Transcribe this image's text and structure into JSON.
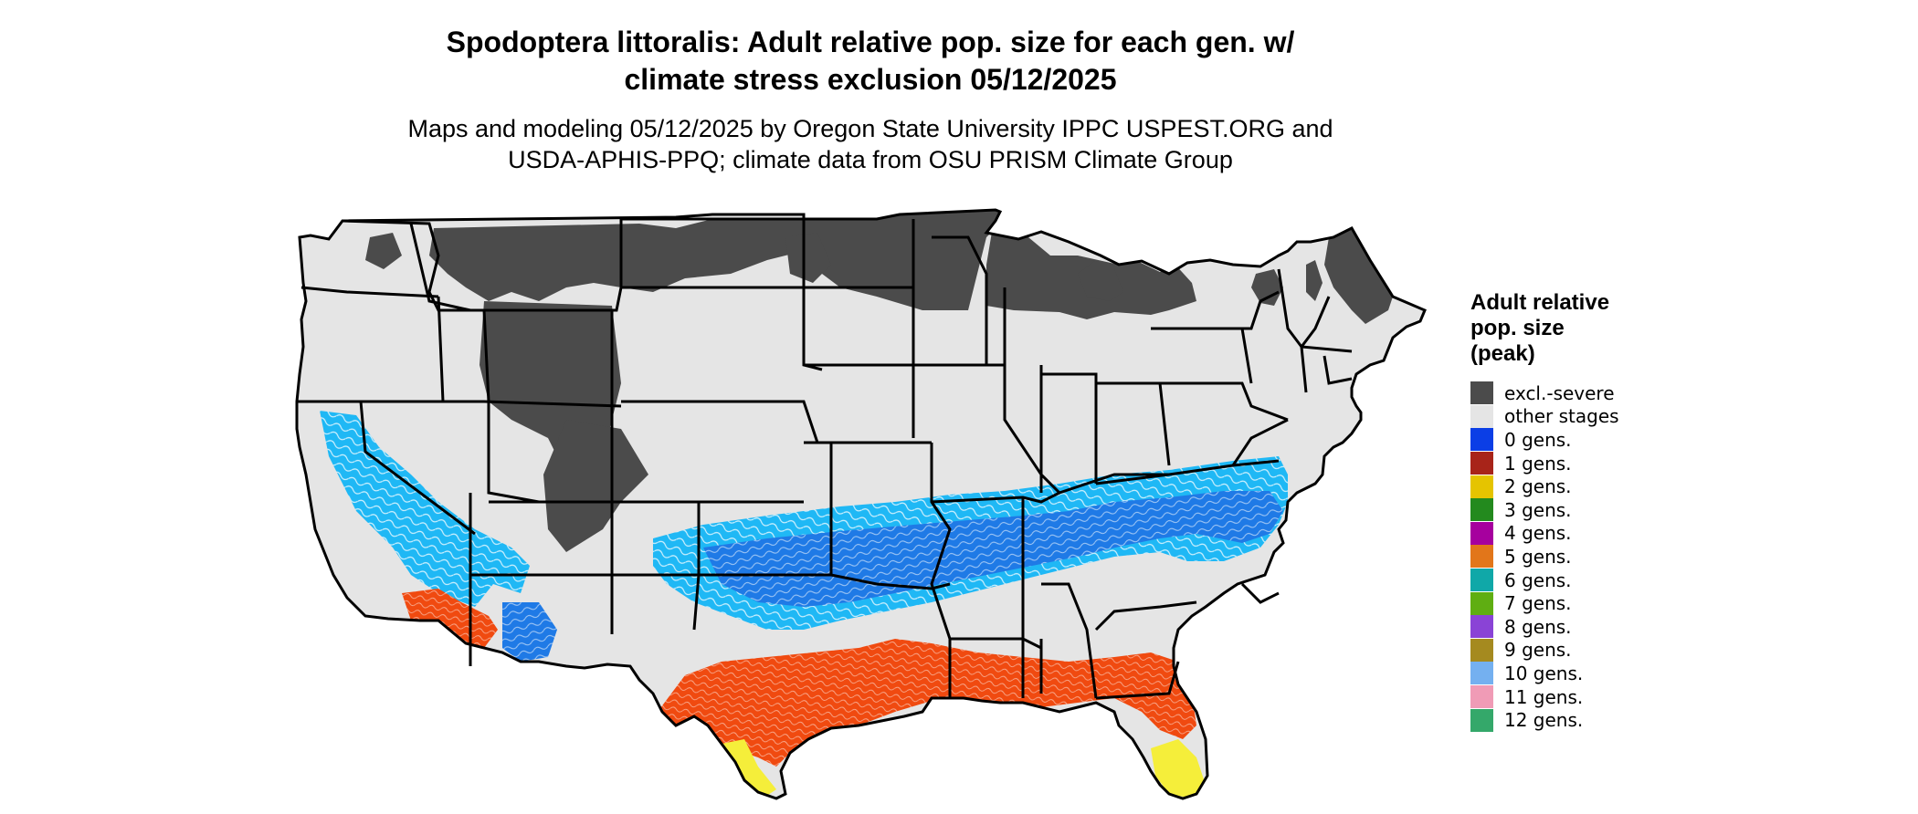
{
  "title": {
    "line1": "Spodoptera littoralis: Adult relative pop. size for each gen. w/",
    "line2": "climate stress exclusion 05/12/2025"
  },
  "subtitle": {
    "line1": "Maps and modeling 05/12/2025 by Oregon State University IPPC USPEST.ORG and",
    "line2": "USDA-APHIS-PPQ; climate data from OSU PRISM Climate Group"
  },
  "legend": {
    "title_lines": [
      "Adult relative",
      "pop. size",
      "(peak)"
    ],
    "items": [
      {
        "label": "excl.-severe",
        "color": "#4b4b4b"
      },
      {
        "label": "other stages",
        "color": "#e5e5e5"
      },
      {
        "label": "0 gens.",
        "color": "#0b3ee6"
      },
      {
        "label": "1 gens.",
        "color": "#a82419"
      },
      {
        "label": "2 gens.",
        "color": "#e5c400"
      },
      {
        "label": "3 gens.",
        "color": "#238a1e"
      },
      {
        "label": "4 gens.",
        "color": "#a6009e"
      },
      {
        "label": "5 gens.",
        "color": "#e2761a"
      },
      {
        "label": "6 gens.",
        "color": "#10a8a8"
      },
      {
        "label": "7 gens.",
        "color": "#5fae12"
      },
      {
        "label": "8 gens.",
        "color": "#8a43d6"
      },
      {
        "label": "9 gens.",
        "color": "#a58a1f"
      },
      {
        "label": "10 gens.",
        "color": "#74b0f0"
      },
      {
        "label": "11 gens.",
        "color": "#f09bb6"
      },
      {
        "label": "12 gens.",
        "color": "#34a86a"
      }
    ]
  },
  "map_colors": {
    "land": "#e5e5e5",
    "excluded": "#4b4b4b",
    "light_blue_band": "#1fb8f5",
    "mid_blue_band": "#1f7ae6",
    "orange_red_band": "#f04a10",
    "yellow_band": "#f5ee3a",
    "border": "#000000"
  }
}
